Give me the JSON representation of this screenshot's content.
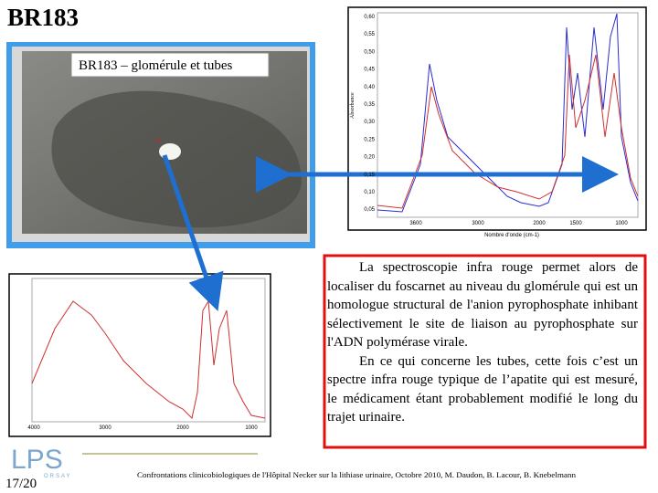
{
  "header": {
    "title": "BR183"
  },
  "image": {
    "caption": "BR183 – glomérule et tubes"
  },
  "spectrum_right": {
    "yticks": [
      "0,60",
      "0,55",
      "0,50",
      "0,45",
      "0,40",
      "0,35",
      "0,30",
      "0,25",
      "0,20",
      "0,15",
      "0,10",
      "0,05"
    ],
    "xticks": [
      "3600",
      "3000",
      "2000",
      "1500",
      "1000"
    ],
    "x_label": "Nombre d'onde (cm-1)"
  },
  "spectrum_left": {
    "xticks": [
      "4000",
      "3000",
      "2000",
      "1000"
    ]
  },
  "text_box": {
    "paragraphs": [
      "La spectroscopie infra rouge permet alors de localiser du foscarnet au niveau du glomérule qui est un homologue structural de l'anion pyrophosphate inhibant sélectivement le site de liaison au pyrophosphate sur l'ADN polymérase virale.",
      "En ce qui concerne les tubes, cette fois c’est un spectre infra rouge typique de l’apatite qui est mesuré, le médicament étant probablement modifié le long du trajet urinaire."
    ]
  },
  "footer": {
    "page": "17/20",
    "logo": "LPS",
    "logo_sub": "ORSAY",
    "credit": "Confrontations clinicobiologiques de l'Hôpital Necker sur la lithiase urinaire, Octobre 2010, M. Daudon, B. Lacour, B. Knebelmann"
  }
}
